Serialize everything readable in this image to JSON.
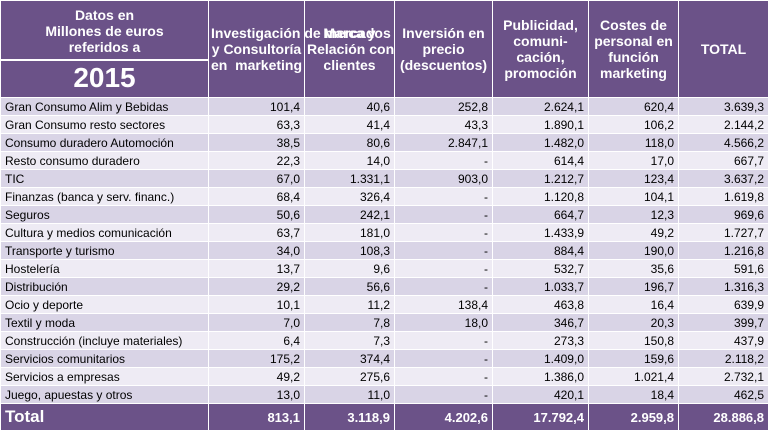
{
  "header": {
    "corner_line1": "Datos en\nMillones de euros\nreferidos a",
    "corner_year": "2015",
    "columns": [
      "Investigación de mercados\ny Consultoría\nen  marketing",
      "Marca y\nRelación con\nclientes",
      "Inversión en\nprecio\n(descuentos)",
      "Publicidad,\ncomuni-\ncación,\npromoción",
      "Costes de\npersonal en\nfunción\nmarketing",
      "TOTAL"
    ]
  },
  "rows": [
    {
      "label": "Gran Consumo Alim y Bebidas",
      "values": [
        "101,4",
        "40,6",
        "252,8",
        "2.624,1",
        "620,4",
        "3.639,3"
      ]
    },
    {
      "label": "Gran Consumo resto sectores",
      "values": [
        "63,3",
        "41,4",
        "43,3",
        "1.890,1",
        "106,2",
        "2.144,2"
      ]
    },
    {
      "label": "Consumo duradero Automoción",
      "values": [
        "38,5",
        "80,6",
        "2.847,1",
        "1.482,0",
        "118,0",
        "4.566,2"
      ]
    },
    {
      "label": "Resto consumo duradero",
      "values": [
        "22,3",
        "14,0",
        "-",
        "614,4",
        "17,0",
        "667,7"
      ]
    },
    {
      "label": "TIC",
      "values": [
        "67,0",
        "1.331,1",
        "903,0",
        "1.212,7",
        "123,4",
        "3.637,2"
      ]
    },
    {
      "label": "Finanzas (banca y serv. financ.)",
      "values": [
        "68,4",
        "326,4",
        "-",
        "1.120,8",
        "104,1",
        "1.619,8"
      ]
    },
    {
      "label": "Seguros",
      "values": [
        "50,6",
        "242,1",
        "-",
        "664,7",
        "12,3",
        "969,6"
      ]
    },
    {
      "label": "Cultura y medios comunicación",
      "values": [
        "63,7",
        "181,0",
        "-",
        "1.433,9",
        "49,2",
        "1.727,7"
      ]
    },
    {
      "label": "Transporte y turismo",
      "values": [
        "34,0",
        "108,3",
        "-",
        "884,4",
        "190,0",
        "1.216,8"
      ]
    },
    {
      "label": "Hostelería",
      "values": [
        "13,7",
        "9,6",
        "-",
        "532,7",
        "35,6",
        "591,6"
      ]
    },
    {
      "label": "Distribución",
      "values": [
        "29,2",
        "56,6",
        "-",
        "1.033,7",
        "196,7",
        "1.316,3"
      ]
    },
    {
      "label": "Ocio y deporte",
      "values": [
        "10,1",
        "11,2",
        "138,4",
        "463,8",
        "16,4",
        "639,9"
      ]
    },
    {
      "label": "Textil y moda",
      "values": [
        "7,0",
        "7,8",
        "18,0",
        "346,7",
        "20,3",
        "399,7"
      ]
    },
    {
      "label": "Construcción (incluye materiales)",
      "values": [
        "6,4",
        "7,3",
        "-",
        "273,3",
        "150,8",
        "437,9"
      ]
    },
    {
      "label": "Servicios comunitarios",
      "values": [
        "175,2",
        "374,4",
        "-",
        "1.409,0",
        "159,6",
        "2.118,2"
      ]
    },
    {
      "label": "Servicios a empresas",
      "values": [
        "49,2",
        "275,6",
        "-",
        "1.386,0",
        "1.021,4",
        "2.732,1"
      ]
    },
    {
      "label": "Juego,  apuestas y otros",
      "values": [
        "13,0",
        "11,0",
        "-",
        "420,1",
        "18,4",
        "462,5"
      ]
    }
  ],
  "total": {
    "label": "Total",
    "values": [
      "813,1",
      "3.118,9",
      "4.202,6",
      "17.792,4",
      "2.959,8",
      "28.886,8"
    ]
  },
  "colors": {
    "header_bg": "#6b5288",
    "row_odd": "#d9d4e6",
    "row_even": "#eeebf4",
    "header_text": "#ffffff"
  }
}
